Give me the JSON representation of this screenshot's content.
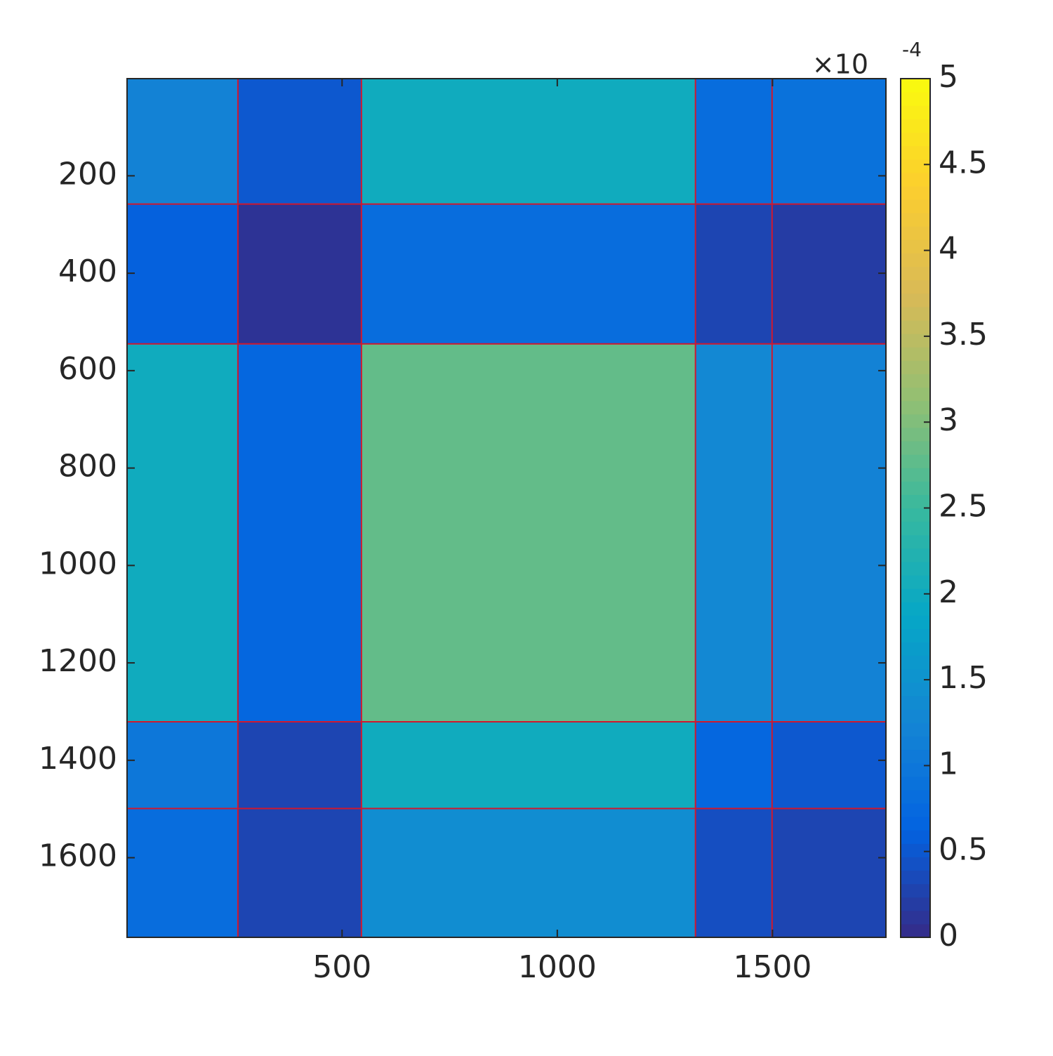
{
  "chart_data": {
    "type": "heatmap",
    "xlim": [
      0.5,
      1763.5
    ],
    "ylim": [
      0.5,
      1763.5
    ],
    "y_reversed": true,
    "xticks": [
      500,
      1000,
      1500
    ],
    "yticks": [
      200,
      400,
      600,
      800,
      1000,
      1200,
      1400,
      1600
    ],
    "block_edges": [
      0.5,
      258,
      545,
      1321,
      1499,
      1763.5
    ],
    "values": [
      [
        1.2,
        0.5,
        2.0,
        0.8,
        0.9
      ],
      [
        0.6,
        0.1,
        0.8,
        0.3,
        0.2
      ],
      [
        2.0,
        0.7,
        2.8,
        1.3,
        1.2
      ],
      [
        1.0,
        0.3,
        2.0,
        0.7,
        0.5
      ],
      [
        0.8,
        0.3,
        1.4,
        0.4,
        0.3
      ]
    ],
    "boundaries": [
      258,
      545,
      1321,
      1499
    ],
    "boundary_color": "#d0182e",
    "clim": [
      0,
      5
    ],
    "cticks": [
      0,
      0.5,
      1,
      1.5,
      2,
      2.5,
      3,
      3.5,
      4,
      4.5,
      5
    ],
    "colorbar_exponent_base": "×10",
    "colorbar_exponent": "-4",
    "colormap": [
      "#352a87",
      "#0363e1",
      "#1485d4",
      "#06a7c6",
      "#38b99e",
      "#92bf73",
      "#d9ba56",
      "#fcce2e",
      "#f9fb0e"
    ]
  }
}
